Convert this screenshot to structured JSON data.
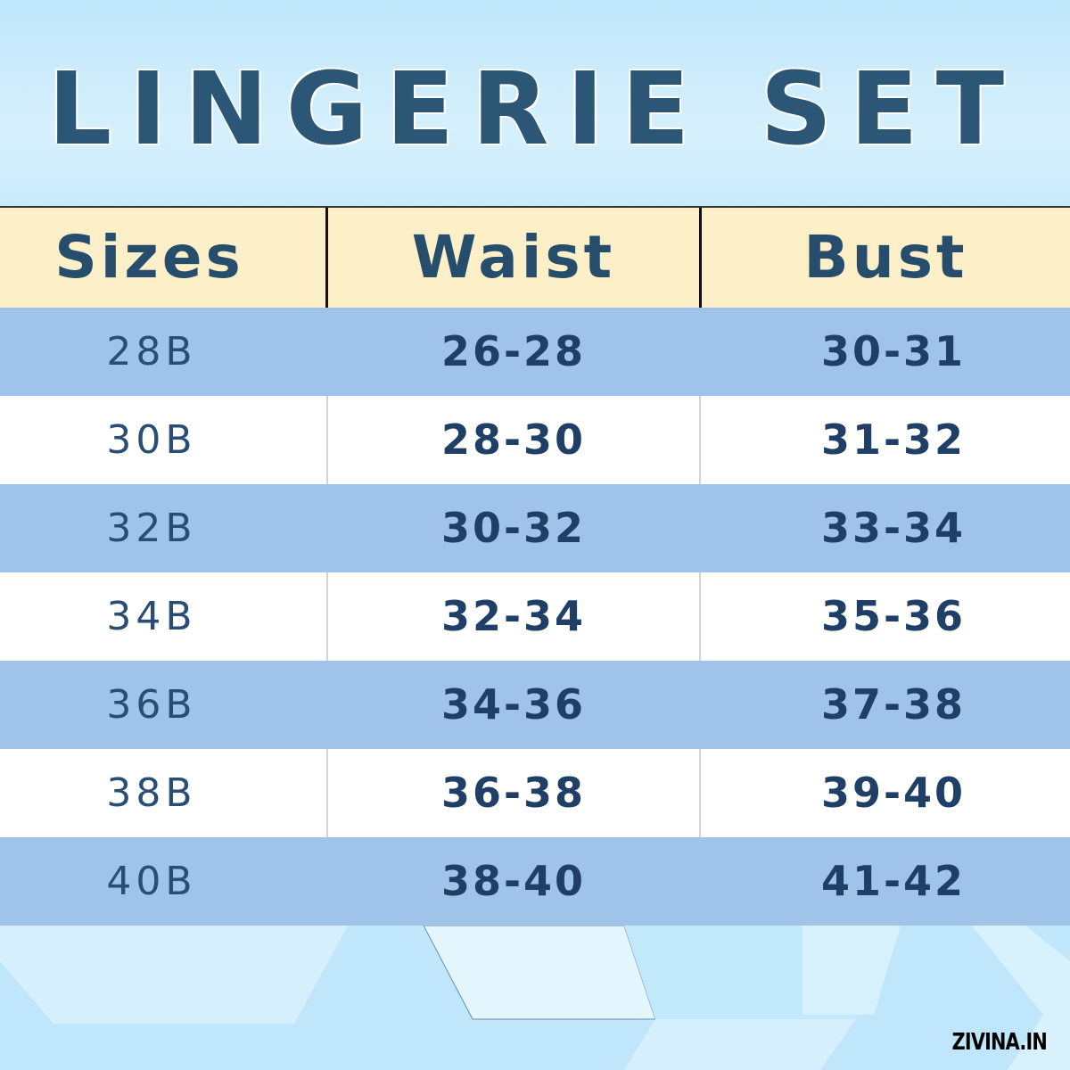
{
  "title": "LINGERIE SET",
  "table": {
    "headers": [
      "Sizes",
      "Waist",
      "Bust"
    ],
    "rows": [
      [
        "28B",
        "26-28",
        "30-31"
      ],
      [
        "30B",
        "28-30",
        "31-32"
      ],
      [
        "32B",
        "30-32",
        "33-34"
      ],
      [
        "34B",
        "32-34",
        "35-36"
      ],
      [
        "36B",
        "34-36",
        "37-38"
      ],
      [
        "38B",
        "36-38",
        "39-40"
      ],
      [
        "40B",
        "38-40",
        "41-42"
      ]
    ]
  },
  "brand": "ZIVINA.IN",
  "colors": {
    "header_bg": "#fdf0c8",
    "stripe_blue": "#9fc3e9",
    "text_dark_blue": "#264d6c"
  }
}
